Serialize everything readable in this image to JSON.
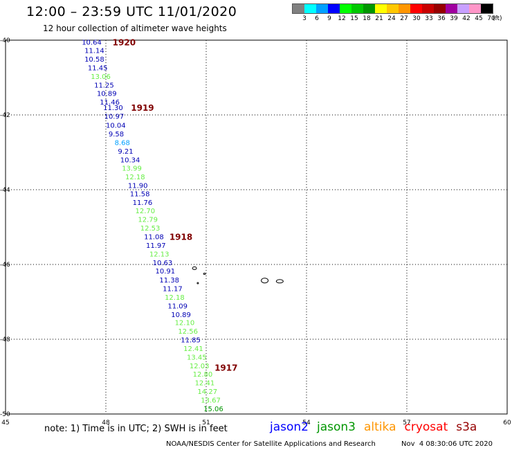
{
  "header": {
    "title": "12:00 – 23:59 UTC 11/01/2020",
    "subtitle": "12 hour collection of altimeter wave heights"
  },
  "legend": {
    "unit": "(ft)",
    "bins": [
      {
        "label": "3",
        "color": "#808080"
      },
      {
        "label": "6",
        "color": "#00ffff"
      },
      {
        "label": "9",
        "color": "#00a0ff"
      },
      {
        "label": "12",
        "color": "#0000ff"
      },
      {
        "label": "15",
        "color": "#00ff00"
      },
      {
        "label": "18",
        "color": "#00c800"
      },
      {
        "label": "21",
        "color": "#009600"
      },
      {
        "label": "24",
        "color": "#ffff00"
      },
      {
        "label": "27",
        "color": "#ffc800"
      },
      {
        "label": "30",
        "color": "#ff9600"
      },
      {
        "label": "33",
        "color": "#ff0000"
      },
      {
        "label": "36",
        "color": "#c80000"
      },
      {
        "label": "39",
        "color": "#960000"
      },
      {
        "label": "42",
        "color": "#a000a0"
      },
      {
        "label": "45",
        "color": "#c8a0ff"
      },
      {
        "label": "70",
        "color": "#ff96c8"
      },
      {
        "label": "",
        "color": "#000000"
      }
    ]
  },
  "map": {
    "lon_min": 45,
    "lon_max": 60,
    "lat_min": -50,
    "lat_max": -40,
    "x_ticks": [
      {
        "value": 45,
        "label": "45"
      },
      {
        "value": 48,
        "label": "48"
      },
      {
        "value": 51,
        "label": "51"
      },
      {
        "value": 54,
        "label": "54"
      },
      {
        "value": 57,
        "label": "57"
      },
      {
        "value": 60,
        "label": "60"
      }
    ],
    "y_ticks": [
      {
        "value": -40,
        "label": "-40"
      },
      {
        "value": -42,
        "label": "-42"
      },
      {
        "value": -44,
        "label": "-44"
      },
      {
        "value": -46,
        "label": "-46"
      },
      {
        "value": -48,
        "label": "-48"
      },
      {
        "value": -50,
        "label": "-50"
      }
    ],
    "time_labels": [
      {
        "text": "1920",
        "lon": 48.2,
        "lat": -40.05
      },
      {
        "text": "1919",
        "lon": 48.75,
        "lat": -41.8
      },
      {
        "text": "1918",
        "lon": 49.9,
        "lat": -45.25
      },
      {
        "text": "1917",
        "lon": 51.25,
        "lat": -48.75
      }
    ],
    "islands": [
      {
        "lon": 50.65,
        "lat": -46.1,
        "w": 6,
        "h": 4
      },
      {
        "lon": 50.95,
        "lat": -46.25,
        "w": 3,
        "h": 2
      },
      {
        "lon": 50.75,
        "lat": -46.5,
        "w": 2,
        "h": 2
      },
      {
        "lon": 52.75,
        "lat": -46.43,
        "w": 10,
        "h": 7
      },
      {
        "lon": 53.2,
        "lat": -46.45,
        "w": 10,
        "h": 5
      }
    ],
    "readings": [
      {
        "text": "10.64",
        "lon": 47.28,
        "lat": -40.05,
        "color": "#0000b4"
      },
      {
        "text": "11.14",
        "lon": 47.36,
        "lat": -40.27,
        "color": "#0000b4"
      },
      {
        "text": "10.58",
        "lon": 47.36,
        "lat": -40.5,
        "color": "#0000b4"
      },
      {
        "text": "11.45",
        "lon": 47.46,
        "lat": -40.73,
        "color": "#0000b4"
      },
      {
        "text": "13.06",
        "lon": 47.55,
        "lat": -40.96,
        "color": "#66ee44"
      },
      {
        "text": "11.25",
        "lon": 47.65,
        "lat": -41.19,
        "color": "#0000b4"
      },
      {
        "text": "10.89",
        "lon": 47.73,
        "lat": -41.42,
        "color": "#0000b4"
      },
      {
        "text": "11.46",
        "lon": 47.82,
        "lat": -41.65,
        "color": "#0000b4"
      },
      {
        "text": "11.30",
        "lon": 47.92,
        "lat": -41.8,
        "color": "#0000b4"
      },
      {
        "text": "10.97",
        "lon": 47.95,
        "lat": -42.03,
        "color": "#0000b4"
      },
      {
        "text": "10.04",
        "lon": 48.0,
        "lat": -42.27,
        "color": "#0000b4"
      },
      {
        "text": "9.58",
        "lon": 48.08,
        "lat": -42.5,
        "color": "#0000b4"
      },
      {
        "text": "8.68",
        "lon": 48.26,
        "lat": -42.73,
        "color": "#00a0ff"
      },
      {
        "text": "9.21",
        "lon": 48.36,
        "lat": -42.96,
        "color": "#0000b4"
      },
      {
        "text": "10.34",
        "lon": 48.43,
        "lat": -43.19,
        "color": "#0000b4"
      },
      {
        "text": "13.99",
        "lon": 48.48,
        "lat": -43.42,
        "color": "#66ee44"
      },
      {
        "text": "12.18",
        "lon": 48.58,
        "lat": -43.65,
        "color": "#66ee44"
      },
      {
        "text": "11.90",
        "lon": 48.66,
        "lat": -43.88,
        "color": "#0000b4"
      },
      {
        "text": "11.58",
        "lon": 48.72,
        "lat": -44.1,
        "color": "#0000b4"
      },
      {
        "text": "11.76",
        "lon": 48.8,
        "lat": -44.33,
        "color": "#0000b4"
      },
      {
        "text": "12.70",
        "lon": 48.88,
        "lat": -44.56,
        "color": "#66ee44"
      },
      {
        "text": "12.79",
        "lon": 48.96,
        "lat": -44.79,
        "color": "#66ee44"
      },
      {
        "text": "12.53",
        "lon": 49.03,
        "lat": -45.02,
        "color": "#66ee44"
      },
      {
        "text": "11.08",
        "lon": 49.14,
        "lat": -45.25,
        "color": "#0000b4"
      },
      {
        "text": "11.97",
        "lon": 49.2,
        "lat": -45.48,
        "color": "#0000b4"
      },
      {
        "text": "12.13",
        "lon": 49.3,
        "lat": -45.71,
        "color": "#66ee44"
      },
      {
        "text": "10.63",
        "lon": 49.4,
        "lat": -45.94,
        "color": "#0000b4"
      },
      {
        "text": "10.91",
        "lon": 49.48,
        "lat": -46.17,
        "color": "#0000b4"
      },
      {
        "text": "11.38",
        "lon": 49.6,
        "lat": -46.41,
        "color": "#0000b4"
      },
      {
        "text": "11.17",
        "lon": 49.7,
        "lat": -46.64,
        "color": "#0000b4"
      },
      {
        "text": "12.18",
        "lon": 49.76,
        "lat": -46.87,
        "color": "#66ee44"
      },
      {
        "text": "11.09",
        "lon": 49.85,
        "lat": -47.1,
        "color": "#0000b4"
      },
      {
        "text": "10.89",
        "lon": 49.95,
        "lat": -47.33,
        "color": "#0000b4"
      },
      {
        "text": "12.10",
        "lon": 50.06,
        "lat": -47.55,
        "color": "#66ee44"
      },
      {
        "text": "12.56",
        "lon": 50.16,
        "lat": -47.78,
        "color": "#66ee44"
      },
      {
        "text": "11.85",
        "lon": 50.24,
        "lat": -48.01,
        "color": "#0000b4"
      },
      {
        "text": "12.41",
        "lon": 50.32,
        "lat": -48.24,
        "color": "#66ee44"
      },
      {
        "text": "13.45",
        "lon": 50.42,
        "lat": -48.47,
        "color": "#66ee44"
      },
      {
        "text": "12.03",
        "lon": 50.5,
        "lat": -48.7,
        "color": "#66ee44"
      },
      {
        "text": "12.80",
        "lon": 50.6,
        "lat": -48.93,
        "color": "#66ee44"
      },
      {
        "text": "12.41",
        "lon": 50.66,
        "lat": -49.16,
        "color": "#66ee44"
      },
      {
        "text": "14.27",
        "lon": 50.74,
        "lat": -49.39,
        "color": "#66ee44"
      },
      {
        "text": "13.67",
        "lon": 50.84,
        "lat": -49.62,
        "color": "#66ee44"
      },
      {
        "text": "15.06",
        "lon": 50.92,
        "lat": -49.85,
        "color": "#009600"
      }
    ]
  },
  "footer": {
    "note": "note: 1) Time is in UTC; 2) SWH is in feet",
    "satellites": [
      {
        "name": "jason2",
        "color": "#0000ff"
      },
      {
        "name": "jason3",
        "color": "#009600"
      },
      {
        "name": "altika",
        "color": "#ff9600"
      },
      {
        "name": "cryosat",
        "color": "#ff0000"
      },
      {
        "name": "s3a",
        "color": "#960000"
      }
    ],
    "credit": "NOAA/NESDIS Center for Satellite Applications and Research",
    "timestamp": "Nov  4 08:30:06 UTC 2020"
  }
}
